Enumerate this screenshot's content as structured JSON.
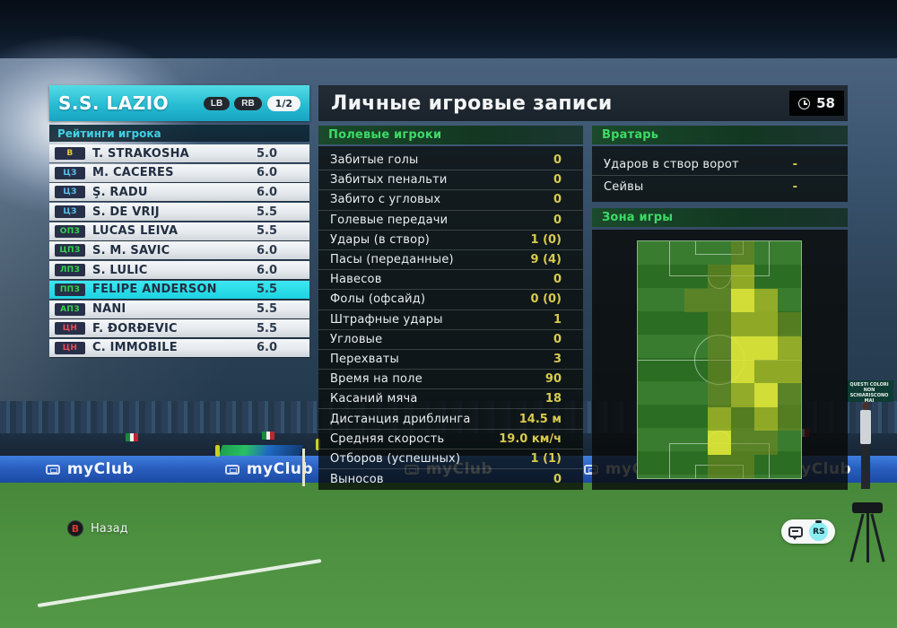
{
  "team_panel": {
    "title": "S.S. LAZIO",
    "nav_prev": "LB",
    "nav_next": "RB",
    "page_indicator": "1/2",
    "ratings_header": "Рейтинги игрока",
    "players": [
      {
        "pos": "В",
        "pos_type": "gk",
        "name": "T. STRAKOSHA",
        "rating": "5.0",
        "selected": false
      },
      {
        "pos": "ЦЗ",
        "pos_type": "df",
        "name": "M. CÁCERES",
        "rating": "6.0",
        "selected": false
      },
      {
        "pos": "ЦЗ",
        "pos_type": "df",
        "name": "Ş. RADU",
        "rating": "6.0",
        "selected": false
      },
      {
        "pos": "ЦЗ",
        "pos_type": "df",
        "name": "S. DE VRIJ",
        "rating": "5.5",
        "selected": false
      },
      {
        "pos": "ОПЗ",
        "pos_type": "mf",
        "name": "LUCAS LEIVA",
        "rating": "5.5",
        "selected": false
      },
      {
        "pos": "ЦПЗ",
        "pos_type": "mf",
        "name": "S. M. SAVIĆ",
        "rating": "6.0",
        "selected": false
      },
      {
        "pos": "ЛПЗ",
        "pos_type": "mf",
        "name": "S. LULIĆ",
        "rating": "6.0",
        "selected": false
      },
      {
        "pos": "ППЗ",
        "pos_type": "mf",
        "name": "FELIPE ANDERSON",
        "rating": "5.5",
        "selected": true
      },
      {
        "pos": "АПЗ",
        "pos_type": "mf",
        "name": "NANI",
        "rating": "5.5",
        "selected": false
      },
      {
        "pos": "ЦН",
        "pos_type": "fw",
        "name": "F. ĐORĐEVIĆ",
        "rating": "5.5",
        "selected": false
      },
      {
        "pos": "ЦН",
        "pos_type": "fw",
        "name": "C. IMMOBILE",
        "rating": "6.0",
        "selected": false
      }
    ]
  },
  "main": {
    "title": "Личные игровые записи",
    "match_time": "58",
    "field_section": {
      "header": "Полевые игроки",
      "stats": [
        {
          "label": "Забитые голы",
          "value": "0"
        },
        {
          "label": "Забитых пенальти",
          "value": "0"
        },
        {
          "label": "Забито с угловых",
          "value": "0"
        },
        {
          "label": "Голевые передачи",
          "value": "0"
        },
        {
          "label": "Удары (в створ)",
          "value": "1 (0)"
        },
        {
          "label": "Пасы (переданные)",
          "value": "9 (4)"
        },
        {
          "label": "Навесов",
          "value": "0"
        },
        {
          "label": "Фолы (офсайд)",
          "value": "0 (0)"
        },
        {
          "label": "Штрафные удары",
          "value": "1"
        },
        {
          "label": "Угловые",
          "value": "0"
        },
        {
          "label": "Перехваты",
          "value": "3"
        },
        {
          "label": "Время на поле",
          "value": "90"
        },
        {
          "label": "Касаний мяча",
          "value": "18"
        },
        {
          "label": "Дистанция дриблинга",
          "value": "14.5 м"
        },
        {
          "label": "Средняя скорость",
          "value": "19.0 км/ч"
        },
        {
          "label": "Отборов (успешных)",
          "value": "1 (1)"
        },
        {
          "label": "Выносов",
          "value": "0"
        }
      ]
    },
    "gk_section": {
      "header": "Вратарь",
      "stats": [
        {
          "label": "Ударов в створ ворот",
          "value": "-"
        },
        {
          "label": "Сейвы",
          "value": "-"
        }
      ]
    },
    "zone_section": {
      "header": "Зона игры",
      "heatmap": {
        "cols": 7,
        "rows": 10,
        "grid": [
          [
            0,
            0,
            0,
            0,
            1,
            0,
            0
          ],
          [
            0,
            0,
            0,
            1,
            2,
            0,
            0
          ],
          [
            0,
            0,
            1,
            1,
            3,
            2,
            0
          ],
          [
            0,
            0,
            0,
            1,
            2,
            2,
            1
          ],
          [
            0,
            0,
            0,
            1,
            3,
            3,
            2
          ],
          [
            0,
            0,
            0,
            1,
            3,
            2,
            2
          ],
          [
            0,
            0,
            0,
            1,
            2,
            3,
            1
          ],
          [
            0,
            0,
            0,
            2,
            1,
            2,
            1
          ],
          [
            0,
            0,
            0,
            3,
            1,
            1,
            0
          ],
          [
            0,
            0,
            0,
            1,
            1,
            0,
            0
          ]
        ],
        "intensity_colors": {
          "1": "rgba(118,136,32,0.55)",
          "2": "rgba(172,186,40,0.78)",
          "3": "rgba(224,230,56,0.92)"
        }
      }
    }
  },
  "footer": {
    "back_button_glyph": "B",
    "back_label": "Назад",
    "stick_hint": "RS"
  },
  "background": {
    "ad_text": "myClub",
    "ad_repeat": 5,
    "supporter_banner": "QUESTI COLORI NON SCHIARISCONO MAI"
  },
  "colors": {
    "accent_cyan": "#27bcd2",
    "selected_row": "#1cd2e2",
    "section_green": "#3ddb67",
    "stat_value_yellow": "#d9ca4d",
    "pos_gk": "#ecc92f",
    "pos_df": "#5cc0ea",
    "pos_mf": "#35d24e",
    "pos_fw": "#ee4a5a"
  }
}
